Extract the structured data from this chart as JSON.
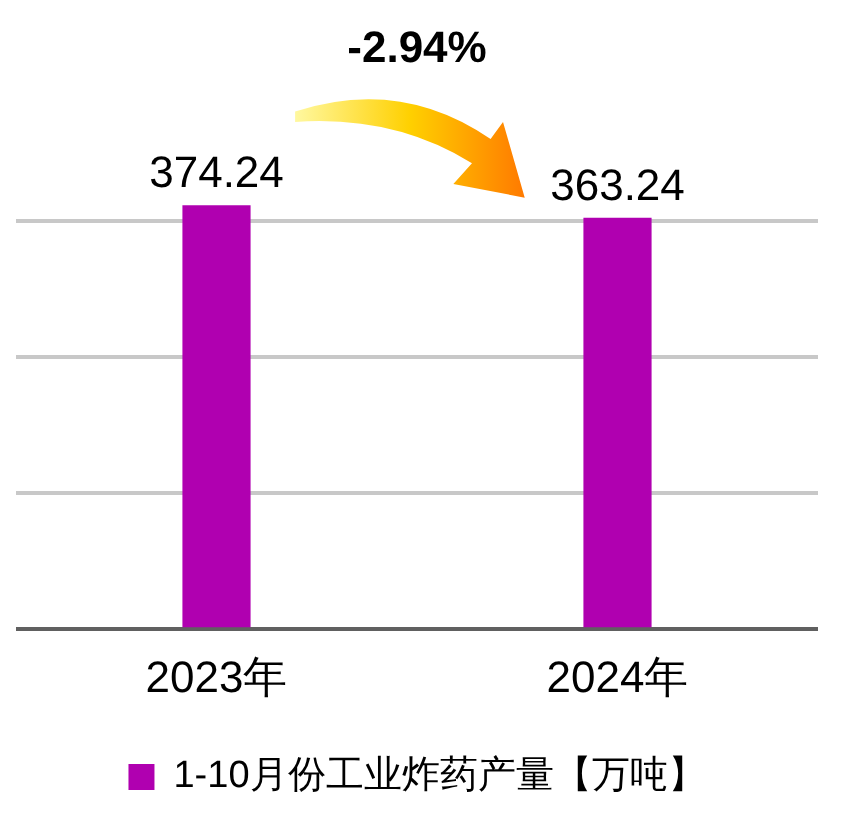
{
  "chart_data": {
    "type": "bar",
    "categories": [
      "2023年",
      "2024年"
    ],
    "series": [
      {
        "name": "1-10月份工业炸药产量【万吨】",
        "color": "#b000b0",
        "values": [
          374.24,
          363.24
        ]
      }
    ],
    "yticks": [
      {
        "value": 0,
        "label": null
      },
      {
        "value": 120,
        "label": null
      },
      {
        "value": 240,
        "label": null
      },
      {
        "value": 360,
        "label": null
      }
    ],
    "grid": "y",
    "tick_labels": "x",
    "legend": "bottom",
    "data_labels": true,
    "annotations": [
      "-2.94%"
    ]
  }
}
